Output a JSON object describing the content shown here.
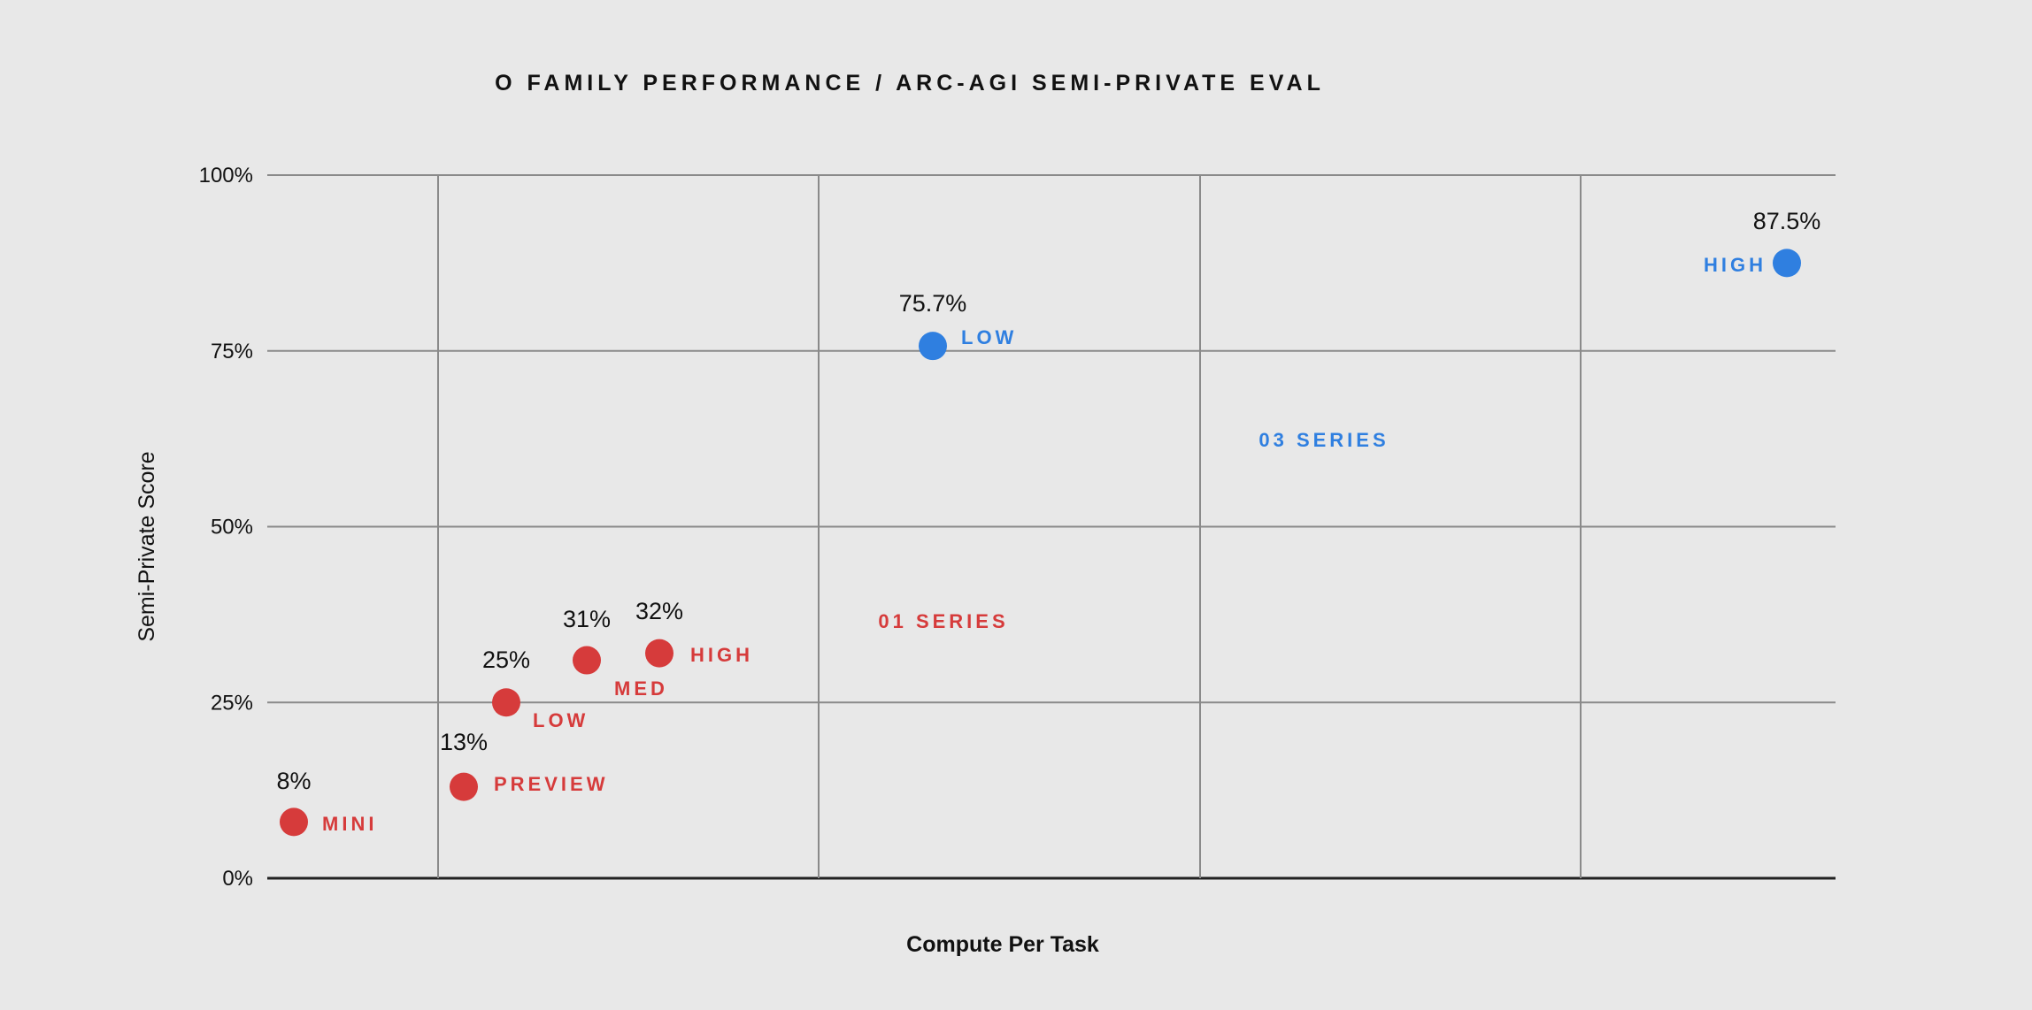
{
  "chart_data": {
    "type": "scatter",
    "title": "O FAMILY PERFORMANCE / ARC-AGI SEMI-PRIVATE EVAL",
    "xlabel": "Compute Per Task",
    "ylabel": "Semi-Private Score",
    "ylim": [
      0,
      100
    ],
    "y_ticks": [
      "0%",
      "25%",
      "50%",
      "75%",
      "100%"
    ],
    "y_tick_values": [
      0,
      25,
      50,
      75,
      100
    ],
    "x_axis_ticks_shown": false,
    "grid": true,
    "series": [
      {
        "name": "01 SERIES",
        "color": "#d63b3b",
        "points": [
          {
            "label": "MINI",
            "value": 8,
            "value_label": "8%"
          },
          {
            "label": "PREVIEW",
            "value": 13,
            "value_label": "13%"
          },
          {
            "label": "LOW",
            "value": 25,
            "value_label": "25%"
          },
          {
            "label": "MED",
            "value": 31,
            "value_label": "31%"
          },
          {
            "label": "HIGH",
            "value": 32,
            "value_label": "32%"
          }
        ]
      },
      {
        "name": "03 SERIES",
        "color": "#2f7fe0",
        "points": [
          {
            "label": "LOW",
            "value": 75.7,
            "value_label": "75.7%"
          },
          {
            "label": "HIGH",
            "value": 87.5,
            "value_label": "87.5%"
          }
        ]
      }
    ]
  }
}
